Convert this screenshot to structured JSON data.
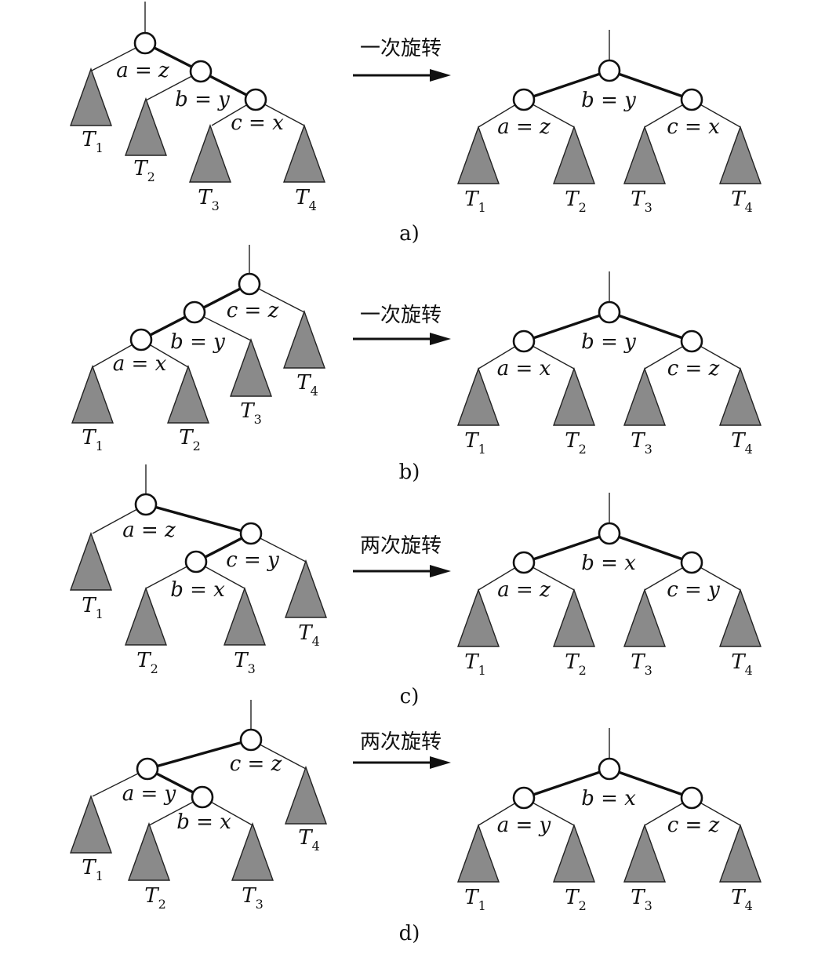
{
  "panels": [
    {
      "caption": "a)",
      "arrow_label": "一次旋转",
      "before": {
        "labels": {
          "a": "a = z",
          "b": "b = y",
          "c": "c = x"
        },
        "subtrees": [
          {
            "name": "T",
            "index": "1"
          },
          {
            "name": "T",
            "index": "2"
          },
          {
            "name": "T",
            "index": "3"
          },
          {
            "name": "T",
            "index": "4"
          }
        ]
      },
      "after": {
        "labels": {
          "a": "a = z",
          "b": "b = y",
          "c": "c = x"
        },
        "subtrees": [
          {
            "name": "T",
            "index": "1"
          },
          {
            "name": "T",
            "index": "2"
          },
          {
            "name": "T",
            "index": "3"
          },
          {
            "name": "T",
            "index": "4"
          }
        ]
      }
    },
    {
      "caption": "b)",
      "arrow_label": "一次旋转",
      "before": {
        "labels": {
          "a": "a = x",
          "b": "b = y",
          "c": "c = z"
        },
        "subtrees": [
          {
            "name": "T",
            "index": "1"
          },
          {
            "name": "T",
            "index": "2"
          },
          {
            "name": "T",
            "index": "3"
          },
          {
            "name": "T",
            "index": "4"
          }
        ]
      },
      "after": {
        "labels": {
          "a": "a = x",
          "b": "b = y",
          "c": "c = z"
        },
        "subtrees": [
          {
            "name": "T",
            "index": "1"
          },
          {
            "name": "T",
            "index": "2"
          },
          {
            "name": "T",
            "index": "3"
          },
          {
            "name": "T",
            "index": "4"
          }
        ]
      }
    },
    {
      "caption": "c)",
      "arrow_label": "两次旋转",
      "before": {
        "labels": {
          "a": "a = z",
          "b": "b = x",
          "c": "c = y"
        },
        "subtrees": [
          {
            "name": "T",
            "index": "1"
          },
          {
            "name": "T",
            "index": "2"
          },
          {
            "name": "T",
            "index": "3"
          },
          {
            "name": "T",
            "index": "4"
          }
        ]
      },
      "after": {
        "labels": {
          "a": "a = z",
          "b": "b = x",
          "c": "c = y"
        },
        "subtrees": [
          {
            "name": "T",
            "index": "1"
          },
          {
            "name": "T",
            "index": "2"
          },
          {
            "name": "T",
            "index": "3"
          },
          {
            "name": "T",
            "index": "4"
          }
        ]
      }
    },
    {
      "caption": "d)",
      "arrow_label": "两次旋转",
      "before": {
        "labels": {
          "a": "a = y",
          "b": "b = x",
          "c": "c = z"
        },
        "subtrees": [
          {
            "name": "T",
            "index": "1"
          },
          {
            "name": "T",
            "index": "2"
          },
          {
            "name": "T",
            "index": "3"
          },
          {
            "name": "T",
            "index": "4"
          }
        ]
      },
      "after": {
        "labels": {
          "a": "a = y",
          "b": "b = x",
          "c": "c = z"
        },
        "subtrees": [
          {
            "name": "T",
            "index": "1"
          },
          {
            "name": "T",
            "index": "2"
          },
          {
            "name": "T",
            "index": "3"
          },
          {
            "name": "T",
            "index": "4"
          }
        ]
      }
    }
  ]
}
